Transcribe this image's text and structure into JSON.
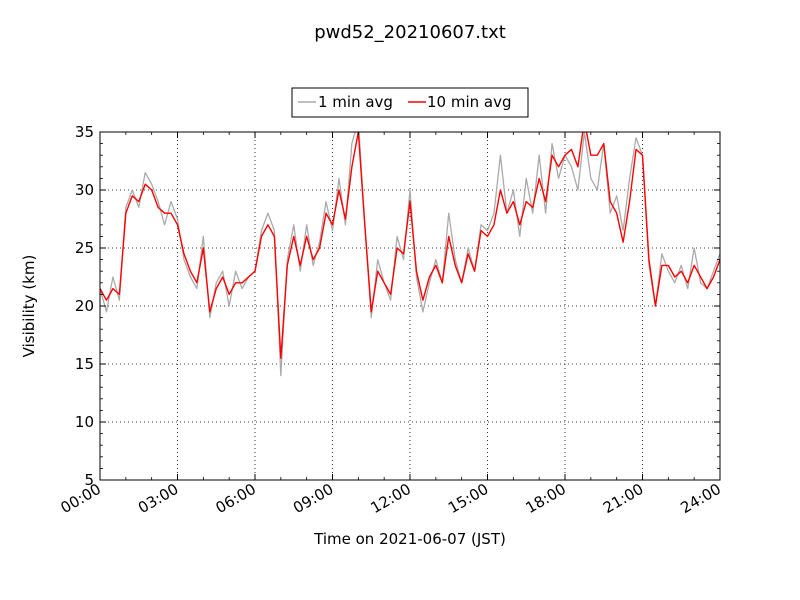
{
  "chart_data": {
    "type": "line",
    "title": "pwd52_20210607.txt",
    "xlabel": "Time on 2021-06-07 (JST)",
    "ylabel": "Visibility (km)",
    "xlim": [
      0,
      24
    ],
    "ylim": [
      5,
      35
    ],
    "x_ticks": [
      "00:00",
      "03:00",
      "06:00",
      "09:00",
      "12:00",
      "15:00",
      "18:00",
      "21:00",
      "24:00"
    ],
    "y_ticks": [
      "5",
      "10",
      "15",
      "20",
      "25",
      "30",
      "35"
    ],
    "grid": true,
    "legend_position": "top-center",
    "x": [
      0.0,
      0.25,
      0.5,
      0.75,
      1.0,
      1.25,
      1.5,
      1.75,
      2.0,
      2.25,
      2.5,
      2.75,
      3.0,
      3.25,
      3.5,
      3.75,
      4.0,
      4.25,
      4.5,
      4.75,
      5.0,
      5.25,
      5.5,
      5.75,
      6.0,
      6.25,
      6.5,
      6.75,
      7.0,
      7.25,
      7.5,
      7.75,
      8.0,
      8.25,
      8.5,
      8.75,
      9.0,
      9.25,
      9.5,
      9.75,
      10.0,
      10.25,
      10.5,
      10.75,
      11.0,
      11.25,
      11.5,
      11.75,
      12.0,
      12.25,
      12.5,
      12.75,
      13.0,
      13.25,
      13.5,
      13.75,
      14.0,
      14.25,
      14.5,
      14.75,
      15.0,
      15.25,
      15.5,
      15.75,
      16.0,
      16.25,
      16.5,
      16.75,
      17.0,
      17.25,
      17.5,
      17.75,
      18.0,
      18.25,
      18.5,
      18.75,
      19.0,
      19.25,
      19.5,
      19.75,
      20.0,
      20.25,
      20.5,
      20.75,
      21.0,
      21.25,
      21.5,
      21.75,
      22.0,
      22.25,
      22.5,
      22.75,
      23.0,
      23.25,
      23.5,
      23.75,
      24.0
    ],
    "series": [
      {
        "name": "1 min avg",
        "color": "#aaaaaa",
        "values": [
          21.5,
          19.5,
          22.5,
          20.5,
          28.5,
          30.0,
          28.5,
          31.5,
          30.5,
          29.0,
          27.0,
          29.0,
          27.5,
          24.0,
          22.5,
          21.5,
          26.0,
          19.0,
          22.0,
          23.0,
          20.0,
          23.0,
          21.5,
          22.5,
          23.0,
          26.5,
          28.0,
          26.5,
          14.0,
          24.0,
          27.0,
          23.0,
          27.0,
          23.5,
          25.5,
          29.0,
          26.5,
          31.0,
          27.0,
          34.0,
          36.0,
          27.0,
          19.0,
          24.0,
          22.0,
          20.5,
          26.0,
          24.0,
          30.0,
          22.5,
          19.5,
          22.0,
          24.0,
          22.0,
          28.0,
          24.0,
          22.0,
          25.0,
          23.0,
          27.0,
          26.5,
          28.0,
          33.0,
          28.0,
          30.0,
          26.0,
          31.0,
          28.0,
          33.0,
          28.0,
          34.0,
          31.0,
          33.0,
          32.0,
          30.0,
          35.0,
          31.0,
          30.0,
          34.0,
          28.0,
          29.5,
          26.5,
          31.0,
          34.5,
          33.0,
          23.5,
          20.0,
          24.5,
          23.0,
          22.0,
          23.5,
          21.5,
          25.0,
          22.0,
          21.5,
          23.0,
          24.5
        ]
      },
      {
        "name": "10 min avg",
        "color": "#ff0000",
        "values": [
          21.5,
          20.5,
          21.5,
          21.0,
          28.0,
          29.5,
          29.0,
          30.5,
          30.0,
          28.5,
          28.0,
          28.0,
          27.0,
          24.5,
          23.0,
          22.0,
          25.0,
          19.5,
          21.5,
          22.5,
          21.0,
          22.0,
          22.0,
          22.5,
          23.0,
          26.0,
          27.0,
          26.0,
          15.5,
          23.5,
          26.0,
          23.5,
          26.0,
          24.0,
          25.0,
          28.0,
          27.0,
          30.0,
          27.5,
          32.0,
          35.0,
          27.0,
          19.5,
          23.0,
          22.0,
          21.0,
          25.0,
          24.5,
          29.0,
          23.0,
          20.5,
          22.5,
          23.5,
          22.0,
          26.0,
          23.5,
          22.0,
          24.5,
          23.0,
          26.5,
          26.0,
          27.0,
          30.0,
          28.0,
          29.0,
          27.0,
          29.0,
          28.5,
          31.0,
          29.0,
          33.0,
          32.0,
          33.0,
          33.5,
          32.0,
          36.0,
          33.0,
          33.0,
          34.0,
          29.0,
          28.0,
          25.5,
          29.0,
          33.5,
          33.0,
          24.0,
          20.0,
          23.5,
          23.5,
          22.5,
          23.0,
          22.0,
          23.5,
          22.5,
          21.5,
          22.5,
          24.0
        ]
      }
    ]
  },
  "legend": {
    "items": [
      {
        "label": "1 min avg",
        "color": "#aaaaaa"
      },
      {
        "label": "10 min avg",
        "color": "#ff0000"
      }
    ]
  }
}
